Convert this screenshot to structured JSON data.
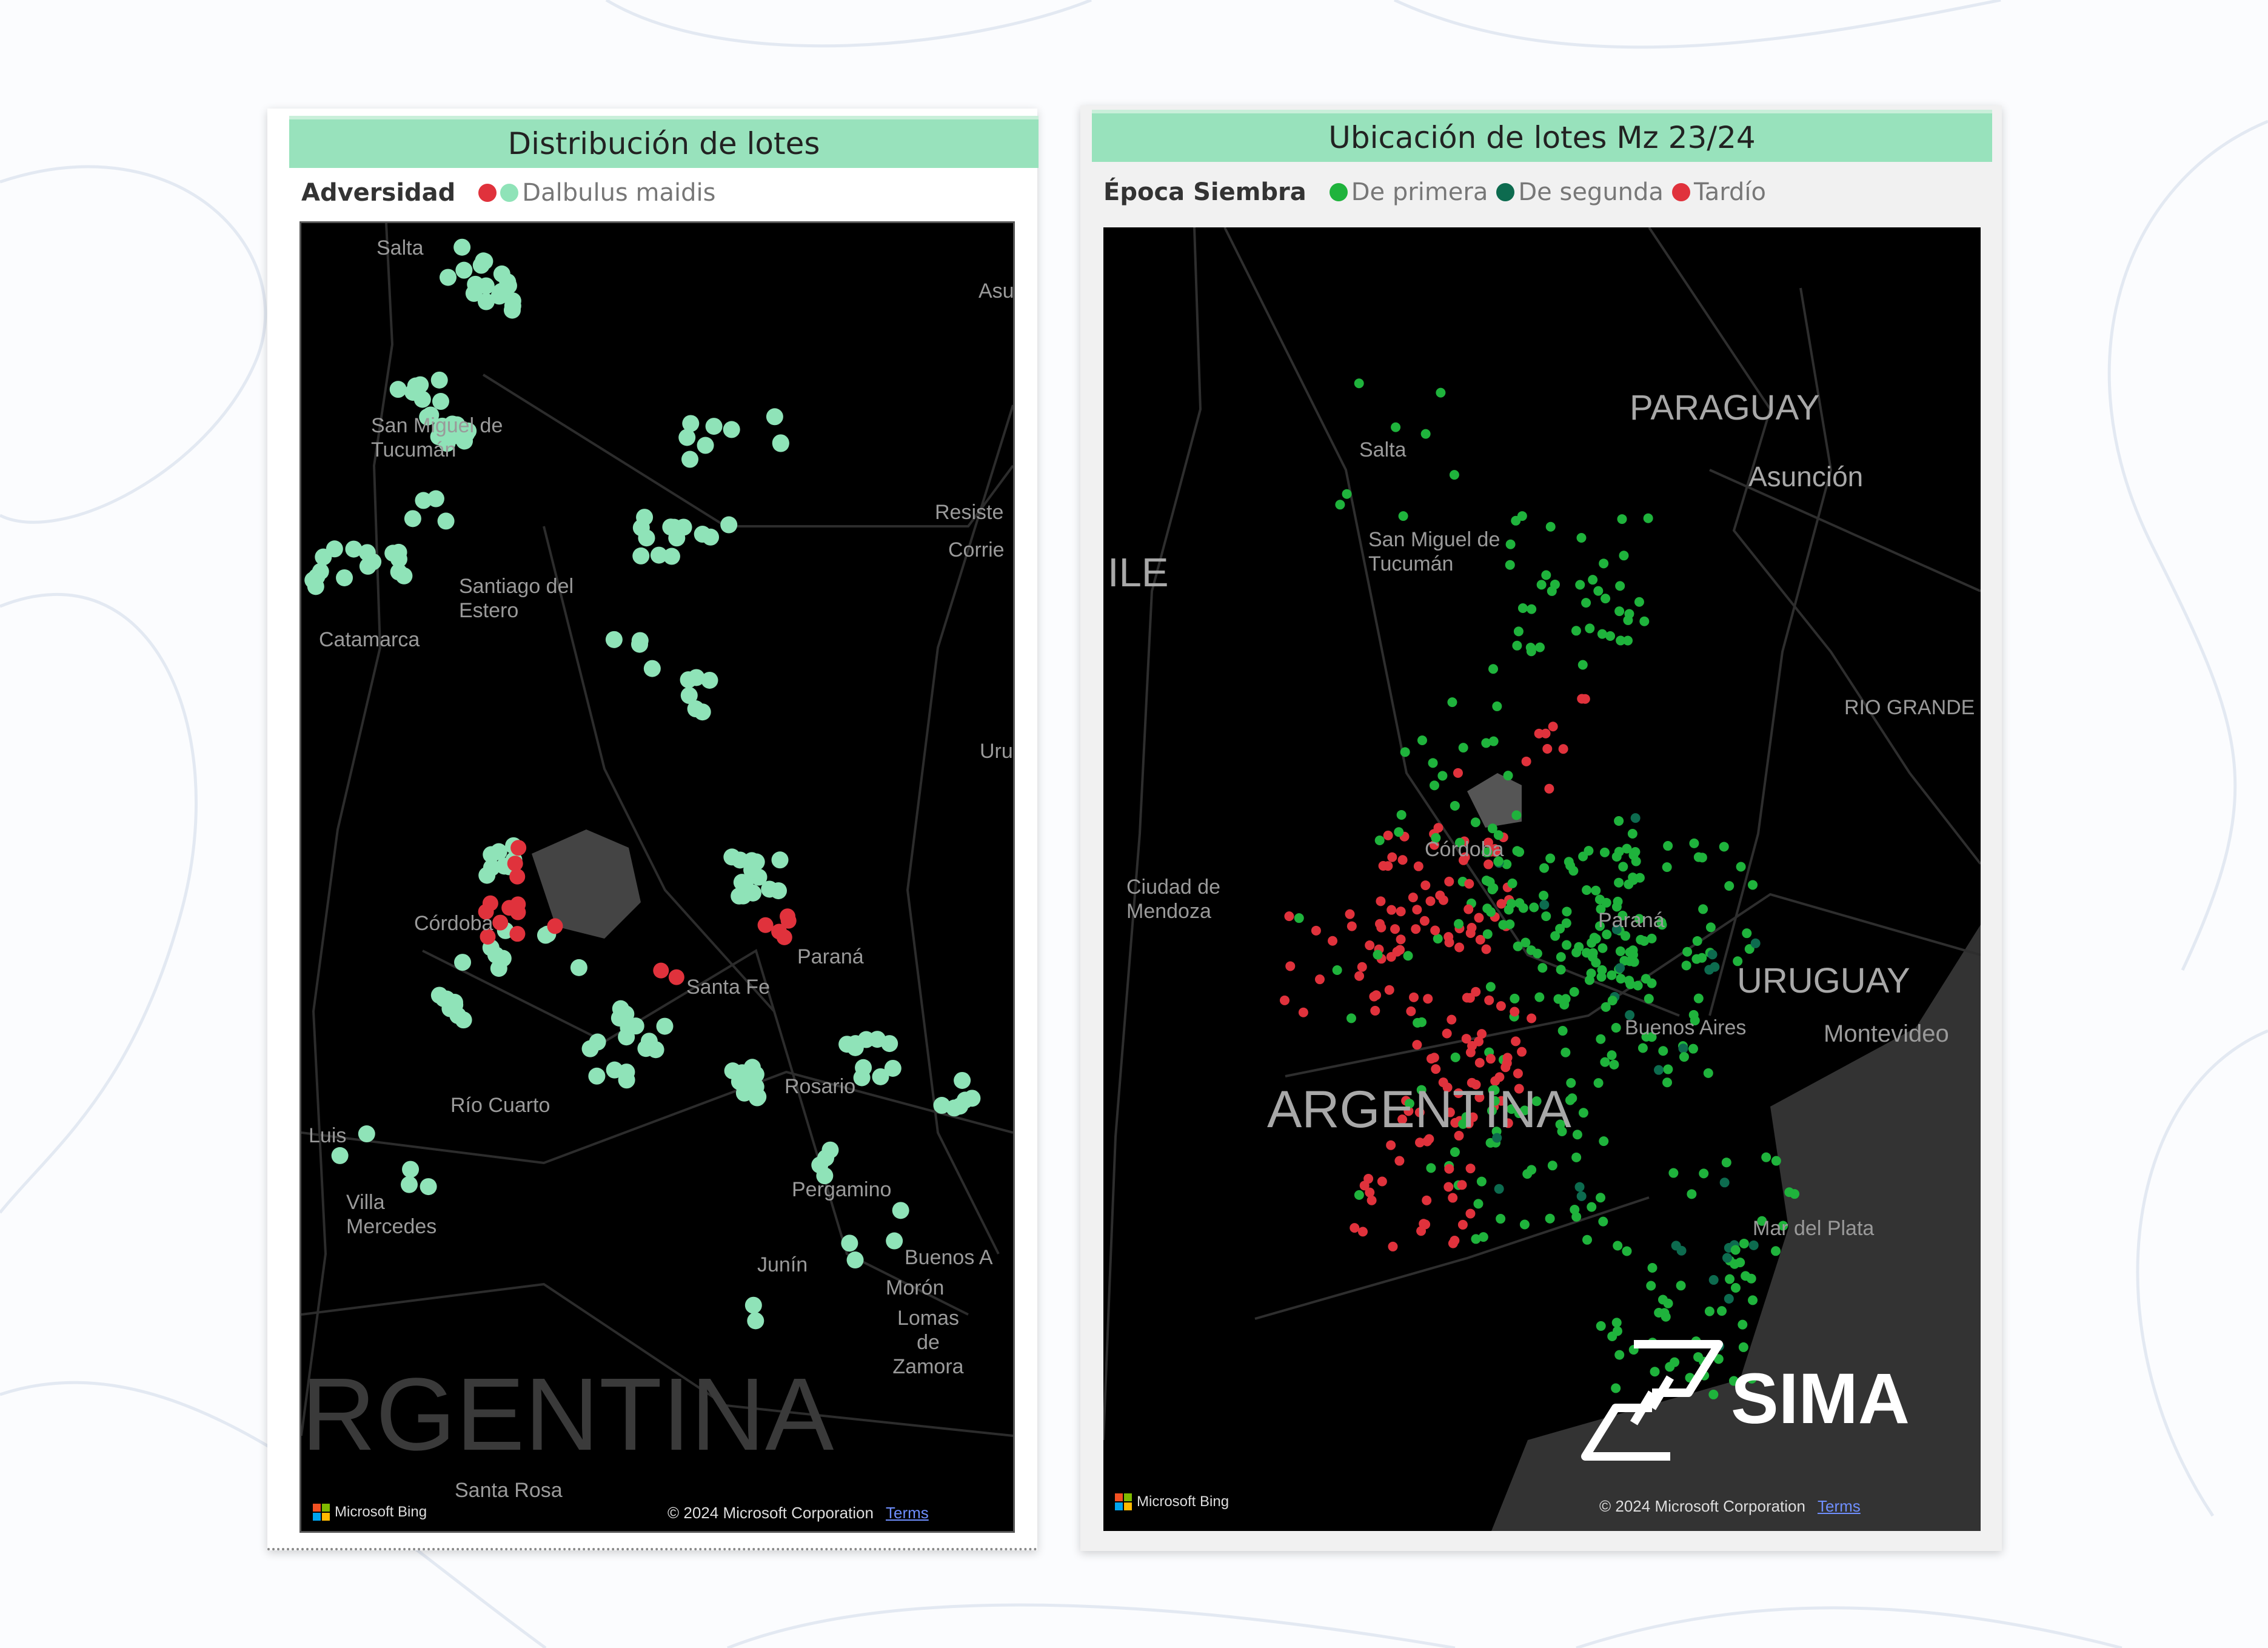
{
  "colors": {
    "title_bg": "#98e2bc",
    "adversidad_red": "#e0323c",
    "dalbulus": "#8fe3b8",
    "de_primera": "#1fb33c",
    "de_segunda": "#0d6b4f",
    "tardio": "#e0323c"
  },
  "left_panel": {
    "title": "Distribución de lotes",
    "legend": {
      "title": "Adversidad",
      "items": [
        {
          "label": "",
          "color": "#e0323c"
        },
        {
          "label": "Dalbulus maidis",
          "color": "#8fe3b8"
        }
      ]
    },
    "map": {
      "labels": [
        "Salta",
        "Asu",
        "San Miguel de Tucumán",
        "Resiste",
        "Corrie",
        "Santiago del Estero",
        "Catamarca",
        "Uru",
        "Córdoba",
        "Paraná",
        "Santa Fe",
        "Rosario",
        "Río Cuarto",
        "Luis",
        "Pergamino",
        "Villa Mercedes",
        "Buenos A",
        "Junín",
        "Morón",
        "Lomas de Zamora",
        "Santa Rosa"
      ],
      "country": "RGENTINA",
      "bing": "Microsoft Bing",
      "copyright": "© 2024 Microsoft Corporation",
      "terms": "Terms"
    }
  },
  "right_panel": {
    "title": "Ubicación de lotes Mz 23/24",
    "legend": {
      "title": "Época Siembra",
      "items": [
        {
          "label": "De primera",
          "color": "#1fb33c"
        },
        {
          "label": "De segunda",
          "color": "#0d6b4f"
        },
        {
          "label": "Tardío",
          "color": "#e0323c"
        }
      ]
    },
    "map": {
      "labels": [
        "Salta",
        "Asunción",
        "San Miguel de Tucumán",
        "RIO GRANDE",
        "Córdoba",
        "Ciudad de Mendoza",
        "Paraná",
        "Buenos Aires",
        "Montevideo",
        "Mar del Plata"
      ],
      "countries": [
        "PARAGUAY",
        "ILE",
        "URUGUAY",
        "ARGENTINA"
      ],
      "bing": "Microsoft Bing",
      "copyright": "© 2024 Microsoft Corporation",
      "terms": "Terms"
    },
    "logo": "SIMA"
  }
}
